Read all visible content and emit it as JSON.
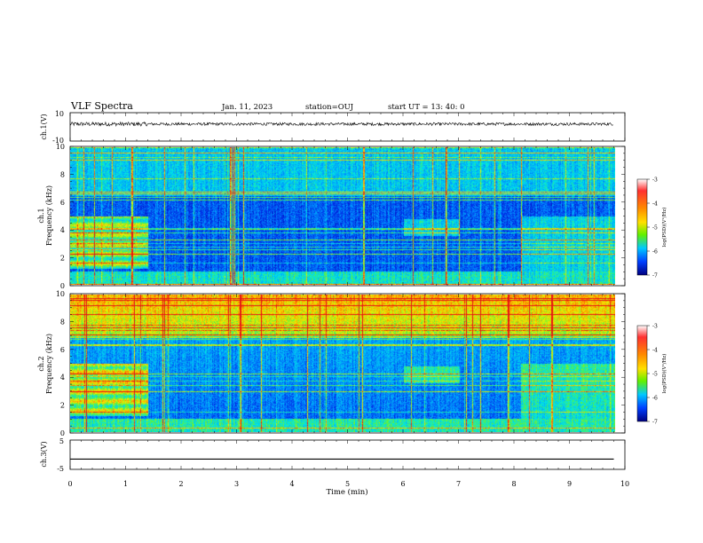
{
  "header": {
    "title": "VLF Spectra",
    "date": "Jan. 11, 2023",
    "station": "station=OUJ",
    "start": "start  UT  =   13: 40: 0"
  },
  "colorbar": {
    "label": "log(PSD)(V²/Hz)",
    "ticks": [
      "-3",
      "-4",
      "-5",
      "-6",
      "-7"
    ],
    "colors": [
      "#ff2020",
      "#ff6a00",
      "#ffd800",
      "#7ff000",
      "#00c8ff",
      "#0050ff",
      "#000090"
    ]
  },
  "chart_data": [
    {
      "type": "line",
      "panel": "ch1-waveform",
      "ylabel": "ch.1(V)",
      "ylim": [
        -10,
        10
      ],
      "yticks": [
        "10",
        "-10"
      ],
      "x": [
        0,
        0.5,
        1,
        1.5,
        2,
        3,
        4,
        5,
        6,
        7,
        8,
        9,
        9.8
      ],
      "y": [
        2,
        2,
        2,
        2,
        2,
        2,
        2,
        2,
        2,
        2,
        2,
        2,
        2
      ],
      "noise_amplitude": 1
    },
    {
      "type": "heatmap",
      "panel": "ch1-spectrogram",
      "ylabel": "ch.1\nFrequency (kHz)",
      "ylim": [
        0,
        10
      ],
      "yticks": [
        "10",
        "8",
        "6",
        "4",
        "2",
        "0"
      ],
      "xlim": [
        0,
        10
      ],
      "data_xmax": 9.8,
      "zlim": [
        -7,
        -3
      ]
    },
    {
      "type": "heatmap",
      "panel": "ch2-spectrogram",
      "ylabel": "ch.2\nFrequency (kHz)",
      "ylim": [
        0,
        10
      ],
      "yticks": [
        "10",
        "8",
        "6",
        "4",
        "2",
        "0"
      ],
      "xlim": [
        0,
        10
      ],
      "data_xmax": 9.8,
      "zlim": [
        -7,
        -3
      ]
    },
    {
      "type": "line",
      "panel": "ch3-waveform",
      "ylabel": "ch.3(V)",
      "ylim": [
        -5,
        5
      ],
      "yticks": [
        "5",
        "-5"
      ],
      "x": [
        0,
        9.8
      ],
      "y": [
        -1.5,
        -1.5
      ]
    }
  ],
  "xaxis": {
    "label": "Time (min)",
    "ticks": [
      "0",
      "1",
      "2",
      "3",
      "4",
      "5",
      "6",
      "7",
      "8",
      "9",
      "10"
    ]
  }
}
